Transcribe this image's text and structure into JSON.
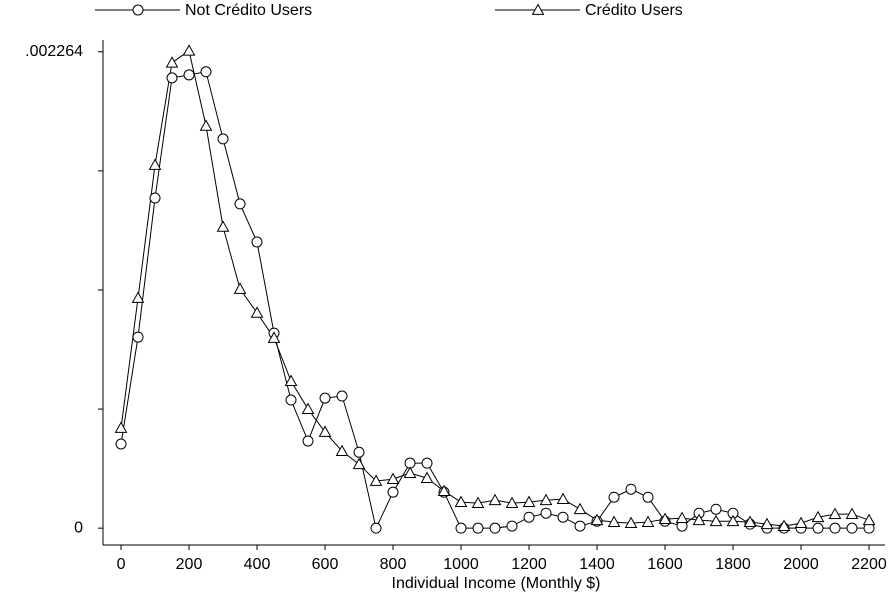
{
  "chart_data": {
    "type": "line",
    "x_label": "Individual Income (Monthly $)",
    "x": [
      0,
      50,
      100,
      150,
      200,
      250,
      300,
      350,
      400,
      450,
      500,
      550,
      600,
      650,
      700,
      750,
      800,
      850,
      900,
      950,
      1000,
      1050,
      1100,
      1150,
      1200,
      1250,
      1300,
      1350,
      1400,
      1450,
      1500,
      1550,
      1600,
      1650,
      1700,
      1750,
      1800,
      1850,
      1900,
      1950,
      2000,
      2050,
      2100,
      2150,
      2200
    ],
    "series": [
      {
        "name": "Not Crédito Users",
        "color": "#000000",
        "marker": "circle",
        "values": [
          0.0004,
          0.000908,
          0.001569,
          0.00214,
          0.002154,
          0.002169,
          0.00185,
          0.001541,
          0.00136,
          0.000927,
          0.000609,
          0.000414,
          0.000618,
          0.000628,
          0.000361,
          0.0,
          0.000171,
          0.000309,
          0.000309,
          0.000171,
          0.0,
          0.0,
          0.0,
          1e-05,
          5.2e-05,
          7.1e-05,
          5.2e-05,
          1e-05,
          3.3e-05,
          0.000147,
          0.000185,
          0.000147,
          3.3e-05,
          1e-05,
          7.1e-05,
          9e-05,
          7.1e-05,
          1.9e-05,
          0.0,
          0.0,
          0.0,
          0.0,
          0.0,
          0.0,
          0.0
        ]
      },
      {
        "name": "Crédito Users",
        "color": "#000000",
        "marker": "triangle",
        "values": [
          0.000476,
          0.001094,
          0.001726,
          0.002212,
          0.002269,
          0.001912,
          0.001432,
          0.001137,
          0.001023,
          0.000904,
          0.000699,
          0.000566,
          0.000457,
          0.000366,
          0.000304,
          0.000224,
          0.000233,
          0.000262,
          0.000238,
          0.000176,
          0.000124,
          0.000119,
          0.000133,
          0.000119,
          0.000124,
          0.000133,
          0.000138,
          9e-05,
          3.8e-05,
          2.9e-05,
          2.4e-05,
          2.9e-05,
          4.3e-05,
          4.8e-05,
          3.8e-05,
          3.3e-05,
          3.3e-05,
          2.9e-05,
          1.9e-05,
          1e-05,
          2.4e-05,
          5.2e-05,
          6.7e-05,
          6.7e-05,
          3.8e-05
        ]
      }
    ],
    "xlim": [
      -53,
      2247
    ],
    "xticks": [
      0,
      200,
      400,
      600,
      800,
      1000,
      1200,
      1400,
      1600,
      1800,
      2000,
      2200
    ],
    "ylim": [
      -8e-05,
      0.00232
    ],
    "yticks": [
      {
        "value": 0,
        "label": "0"
      },
      {
        "value": 0.002264,
        "label": ".002264"
      }
    ],
    "minor_yticks": [
      0.000566,
      0.001132,
      0.001698
    ],
    "grid": false
  }
}
